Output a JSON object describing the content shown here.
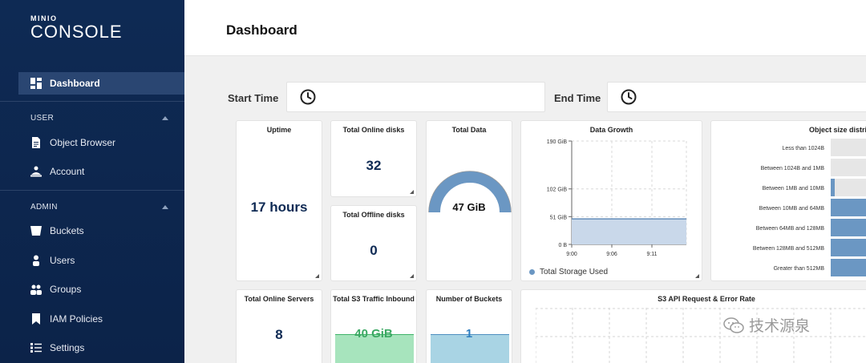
{
  "app": {
    "logo_small": "MINIO",
    "logo_big": "CONSOLE"
  },
  "sidebar": {
    "dashboard": "Dashboard",
    "user_section": "USER",
    "admin_section": "ADMIN",
    "user_items": [
      {
        "label": "Object Browser",
        "icon": "file-icon"
      },
      {
        "label": "Account",
        "icon": "account-icon"
      }
    ],
    "admin_items": [
      {
        "label": "Buckets",
        "icon": "bucket-icon"
      },
      {
        "label": "Users",
        "icon": "user-icon"
      },
      {
        "label": "Groups",
        "icon": "groups-icon"
      },
      {
        "label": "IAM Policies",
        "icon": "bookmark-icon"
      },
      {
        "label": "Settings",
        "icon": "settings-icon"
      }
    ]
  },
  "header": {
    "title": "Dashboard"
  },
  "filters": {
    "start_label": "Start Time",
    "end_label": "End Time"
  },
  "cards": {
    "uptime": {
      "title": "Uptime",
      "value": "17 hours"
    },
    "online_disks": {
      "title": "Total Online disks",
      "value": "32"
    },
    "offline_disks": {
      "title": "Total Offline disks",
      "value": "0"
    },
    "total_data": {
      "title": "Total Data",
      "value": "47 GiB",
      "fill_fraction": 1.0
    },
    "online_servers": {
      "title": "Total Online Servers",
      "value": "8"
    },
    "s3_traffic": {
      "title": "Total S3 Traffic Inbound",
      "value": "40 GiB"
    },
    "buckets": {
      "title": "Number of Buckets",
      "value": "1"
    },
    "api_rate": {
      "title": "S3 API Request & Error Rate"
    }
  },
  "chart_data": [
    {
      "type": "area",
      "title": "Data Growth",
      "x": [
        "9:00",
        "9:06",
        "9:11"
      ],
      "yticks": [
        "190 GiB",
        "102 GiB",
        "51 GiB",
        "0 B"
      ],
      "ylim": [
        0,
        190
      ],
      "series": [
        {
          "name": "Total Storage Used",
          "values": [
            47,
            47,
            47
          ]
        }
      ],
      "grid": true,
      "legend": "bottom-left",
      "color": "#6b97c3"
    },
    {
      "type": "bar",
      "title": "Object size distri",
      "orientation": "horizontal",
      "categories": [
        "Less than 1024B",
        "Between 1024B and 1MB",
        "Between 1MB and 10MB",
        "Between 10MB and 64MB",
        "Between 64MB and 128MB",
        "Between 128MB and 512MB",
        "Greater than 512MB"
      ],
      "values": [
        0,
        0,
        0.1,
        1,
        1,
        1,
        1
      ],
      "color": "#6b97c3"
    }
  ],
  "watermark": {
    "text": "技术源泉"
  }
}
